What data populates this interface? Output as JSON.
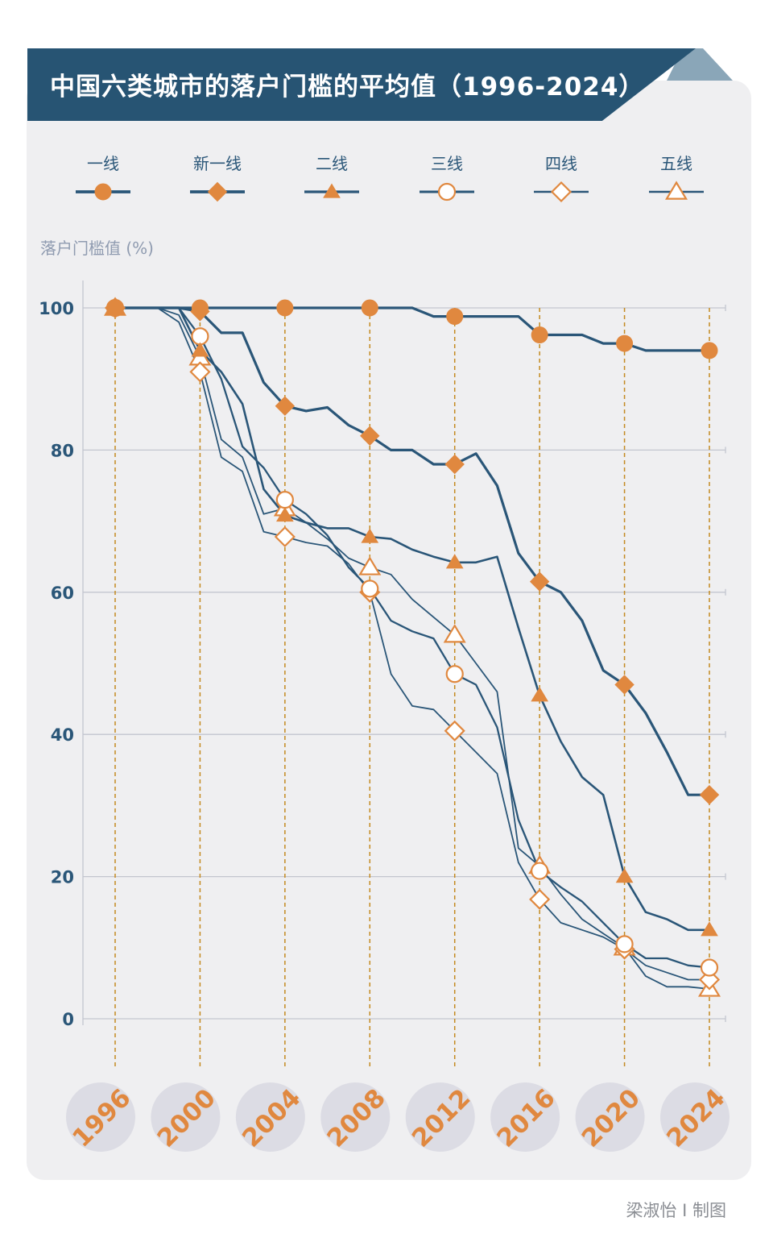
{
  "title": "中国六类城市的落户门槛的平均值（1996-2024）",
  "credit": "梁淑怡 I 制图",
  "colors": {
    "line": "#2a5678",
    "marker": "#e0883f",
    "dash": "#c48a20",
    "grid": "#c3c6cf",
    "axis_text": "#2a5678",
    "year_text": "#e0883f",
    "year_bubble": "#dcdce4"
  },
  "chart_data": {
    "type": "line",
    "title": "中国六类城市的落户门槛的平均值（1996-2024）",
    "ylabel": "落户门槛值 (%)",
    "xlabel": "",
    "ylim": [
      0,
      100
    ],
    "xlim": [
      1996,
      2024
    ],
    "yticks": [
      "0",
      "20",
      "40",
      "60",
      "80",
      "100"
    ],
    "xticks": [
      "1996",
      "2000",
      "2004",
      "2008",
      "2012",
      "2016",
      "2020",
      "2024"
    ],
    "x": [
      1996,
      1997,
      1998,
      1999,
      2000,
      2001,
      2002,
      2003,
      2004,
      2005,
      2006,
      2007,
      2008,
      2009,
      2010,
      2011,
      2012,
      2013,
      2014,
      2015,
      2016,
      2017,
      2018,
      2019,
      2020,
      2021,
      2022,
      2023,
      2024
    ],
    "series": [
      {
        "name": "一线",
        "marker": "circle-filled",
        "width": 3.2,
        "values": [
          100,
          100,
          100,
          100,
          100,
          100,
          100,
          100,
          100,
          100,
          100,
          100,
          100,
          100,
          100,
          98.8,
          98.8,
          98.8,
          98.8,
          98.8,
          96.2,
          96.2,
          96.2,
          95,
          95,
          94,
          94,
          94,
          94
        ]
      },
      {
        "name": "新一线",
        "marker": "diamond-filled",
        "width": 3.2,
        "values": [
          100,
          100,
          100,
          100,
          99.5,
          96.5,
          96.5,
          89.5,
          86.2,
          85.5,
          86,
          83.5,
          82,
          80,
          80,
          78,
          78,
          79.5,
          75,
          65.5,
          61.5,
          60,
          56,
          49,
          47,
          43,
          37.5,
          31.5,
          31.5
        ]
      },
      {
        "name": "二线",
        "marker": "triangle-filled",
        "width": 2.6,
        "values": [
          100,
          100,
          100,
          100,
          94,
          91,
          86.5,
          74.5,
          70.8,
          69.8,
          69,
          69,
          67.8,
          67.5,
          66,
          65,
          64.2,
          64.2,
          65,
          55,
          45.5,
          39,
          34,
          31.5,
          20,
          15,
          14,
          12.5,
          12.5
        ]
      },
      {
        "name": "三线",
        "marker": "circle-open",
        "width": 2.3,
        "values": [
          100,
          100,
          100,
          100,
          96,
          90,
          80.5,
          77.5,
          73,
          71,
          68,
          63.5,
          60.5,
          56,
          54.5,
          53.5,
          48.5,
          47,
          41,
          28,
          20.8,
          18.5,
          16.5,
          13.5,
          10.5,
          8.5,
          8.5,
          7.5,
          7.2
        ]
      },
      {
        "name": "四线",
        "marker": "diamond-open",
        "width": 1.8,
        "values": [
          100,
          100,
          100,
          98,
          91,
          79,
          77,
          68.5,
          67.8,
          67,
          66.5,
          64,
          60,
          48.5,
          44,
          43.5,
          40.5,
          37.5,
          34.5,
          22,
          16.8,
          13.5,
          12.5,
          11.5,
          9.8,
          7.5,
          6.5,
          5.5,
          5.5
        ]
      },
      {
        "name": "五线",
        "marker": "triangle-open",
        "width": 1.8,
        "values": [
          100,
          100,
          100,
          99,
          93,
          81.5,
          79,
          71,
          71.8,
          69.8,
          67.5,
          64.8,
          63.5,
          62.5,
          59,
          56.5,
          54,
          50,
          46,
          24,
          21.5,
          17.5,
          14,
          12,
          10,
          6,
          4.5,
          4.5,
          4.2
        ]
      }
    ]
  }
}
